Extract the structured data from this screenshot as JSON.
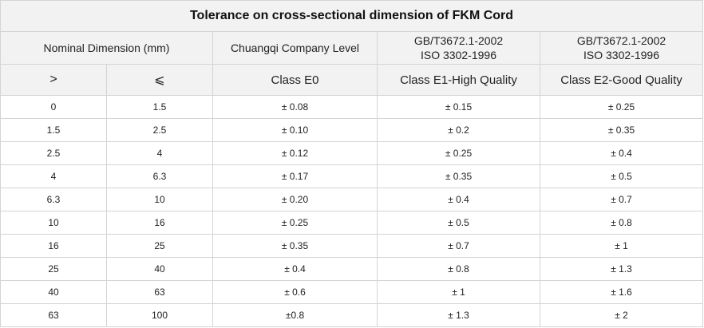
{
  "title": "Tolerance on cross-sectional dimension of FKM Cord",
  "headers": {
    "nominal_dimension": "Nominal Dimension (mm)",
    "company_level": "Chuangqi Company Level",
    "std_e1": [
      "GB/T3672.1-2002",
      "ISO 3302-1996"
    ],
    "std_e2": [
      "GB/T3672.1-2002",
      "ISO 3302-1996"
    ],
    "gt_symbol": ">",
    "le_symbol": "⩽",
    "class_e0": "Class E0",
    "class_e1": "Class E1-High Quality",
    "class_e2": "Class E2-Good Quality"
  },
  "rows": [
    {
      "gt": "0",
      "le": "1.5",
      "e0": "± 0.08",
      "e1": "± 0.15",
      "e2": "± 0.25"
    },
    {
      "gt": "1.5",
      "le": "2.5",
      "e0": "± 0.10",
      "e1": "± 0.2",
      "e2": "± 0.35"
    },
    {
      "gt": "2.5",
      "le": "4",
      "e0": "± 0.12",
      "e1": "± 0.25",
      "e2": "± 0.4"
    },
    {
      "gt": "4",
      "le": "6.3",
      "e0": "± 0.17",
      "e1": "± 0.35",
      "e2": "± 0.5"
    },
    {
      "gt": "6.3",
      "le": "10",
      "e0": "± 0.20",
      "e1": "± 0.4",
      "e2": "± 0.7"
    },
    {
      "gt": "10",
      "le": "16",
      "e0": "± 0.25",
      "e1": "± 0.5",
      "e2": "± 0.8"
    },
    {
      "gt": "16",
      "le": "25",
      "e0": "± 0.35",
      "e1": "± 0.7",
      "e2": "± 1"
    },
    {
      "gt": "25",
      "le": "40",
      "e0": "± 0.4",
      "e1": "± 0.8",
      "e2": "± 1.3"
    },
    {
      "gt": "40",
      "le": "63",
      "e0": "± 0.6",
      "e1": "± 1",
      "e2": "± 1.6"
    },
    {
      "gt": "63",
      "le": "100",
      "e0": "±0.8",
      "e1": "± 1.3",
      "e2": "± 2"
    }
  ]
}
